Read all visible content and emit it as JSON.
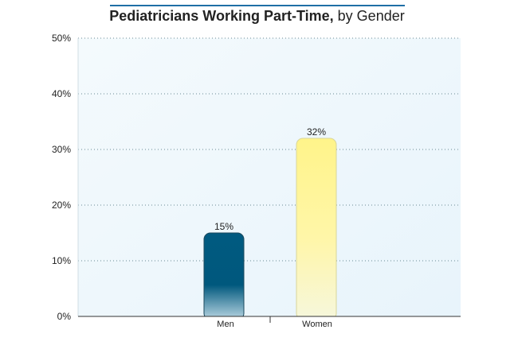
{
  "chart_data": {
    "type": "bar",
    "title_bold": "Pediatricians Working Part-Time,",
    "title_rest": " by Gender",
    "categories": [
      "Men",
      "Women"
    ],
    "values": [
      15,
      32
    ],
    "data_labels": [
      "15%",
      "32%"
    ],
    "ylim": [
      0,
      50
    ],
    "yticks": [
      0,
      10,
      20,
      30,
      40,
      50
    ],
    "ytick_labels": [
      "0%",
      "10%",
      "20%",
      "30%",
      "40%",
      "50%"
    ],
    "grid": true,
    "legend": "none",
    "colors": {
      "Men": "#005a80",
      "Women": "#fff799",
      "plot_bg": "#eef7fc",
      "title_rule": "#1f6fa6"
    }
  }
}
